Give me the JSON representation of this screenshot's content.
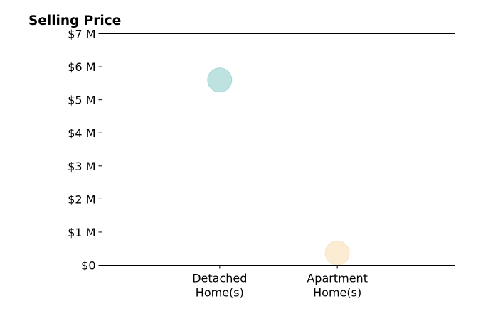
{
  "chart_data": {
    "type": "scatter",
    "title": "Selling Price",
    "xlabel": "",
    "ylabel": "",
    "categories": [
      [
        "Detached",
        "Home(s)"
      ],
      [
        "Apartment",
        "Home(s)"
      ]
    ],
    "points": [
      {
        "category_index": 0,
        "value": 5.6,
        "color": "#a8d8d5"
      },
      {
        "category_index": 1,
        "value": 0.37,
        "color": "#fae5c4"
      }
    ],
    "ylim": [
      0,
      7
    ],
    "yticks": [
      {
        "value": 0,
        "label": "$0"
      },
      {
        "value": 1,
        "label": "$1 M"
      },
      {
        "value": 2,
        "label": "$2 M"
      },
      {
        "value": 3,
        "label": "$3 M"
      },
      {
        "value": 4,
        "label": "$4 M"
      },
      {
        "value": 5,
        "label": "$5 M"
      },
      {
        "value": 6,
        "label": "$6 M"
      },
      {
        "value": 7,
        "label": "$7 M"
      }
    ],
    "xlim": [
      -1,
      2
    ],
    "grid": false,
    "legend": "none"
  }
}
